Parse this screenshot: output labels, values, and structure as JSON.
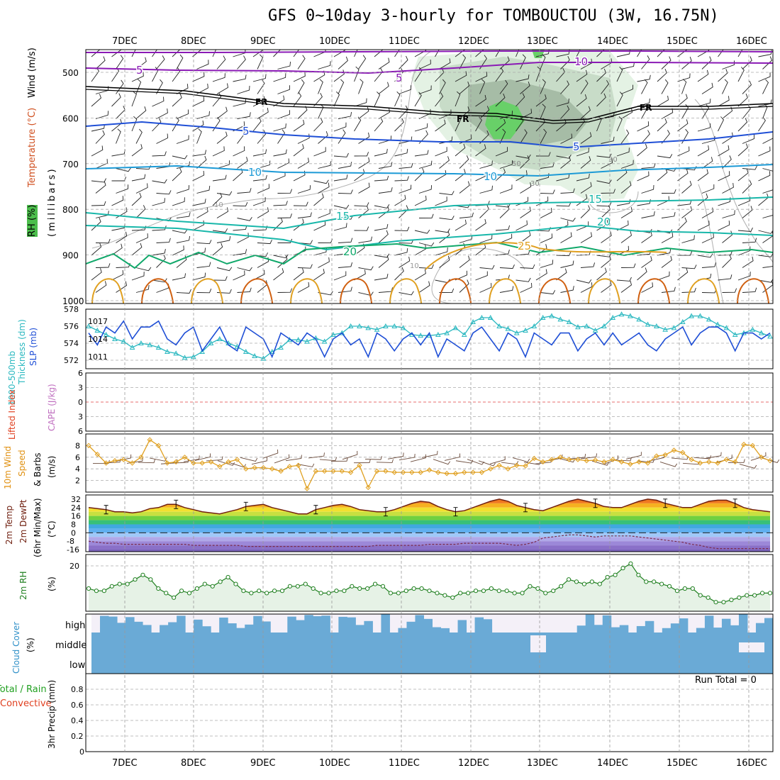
{
  "title": "GFS 0~10day 3-hourly for TOMBOUCTOU (3W, 16.75N)",
  "dates": [
    "7DEC",
    "8DEC",
    "9DEC",
    "10DEC",
    "11DEC",
    "12DEC",
    "13DEC",
    "14DEC",
    "15DEC",
    "16DEC"
  ],
  "colors": {
    "purple": "#8a1ab5",
    "black": "#000000",
    "blue": "#1f4fd6",
    "sky": "#1c9ad6",
    "teal": "#18b7aa",
    "green": "#10a86a",
    "orange": "#e0a020",
    "darkorange": "#d06010",
    "rh_green": "#68d068",
    "gray": "#999999",
    "cloud": "#6aaad6",
    "cloud_low": "#f4f0f8"
  },
  "panels": {
    "upper_air": {
      "ylabel_wind": "Wind (m/s)",
      "ylabel_temp": "Temperature (°C)",
      "ylabel_rh": "RH (%)",
      "ylabel_units": "(millibars)",
      "levels": [
        500,
        600,
        700,
        800,
        900,
        1000
      ],
      "isotherm_labels": [
        "5",
        "5",
        "10",
        "FR",
        "FR",
        "FR",
        "5",
        "5",
        "10",
        "10",
        "15",
        "15",
        "20",
        "20",
        "25"
      ]
    },
    "slp": {
      "ylabel_thick": "Thickness (dm)",
      "ylabel_thick2": "1000-500mb",
      "ylabel_slp": "SLP (mb)",
      "thick_ticks": [
        "578",
        "576",
        "574",
        "572"
      ],
      "slp_ticks": [
        "1017",
        "1014",
        "1011"
      ]
    },
    "cape": {
      "ylabel_li": "Lifted Index",
      "ylabel_cape": "CAPE (J/kg)",
      "ticks": [
        "6",
        "3",
        "0",
        "3",
        "6"
      ]
    },
    "wind10": {
      "ylabel_a": "10m Wind",
      "ylabel_b": "Speed",
      "ylabel_c": "& Barbs",
      "units": "(m/s)",
      "ticks": [
        "8",
        "6",
        "4",
        "2"
      ]
    },
    "temp2m": {
      "ylabel_a": "2m Temp",
      "ylabel_b": "2m DewPt",
      "ylabel_c": "(6hr Min/Max)",
      "units": "(°C)",
      "ticks": [
        "32",
        "24",
        "16",
        "8",
        "0",
        "-8",
        "-16"
      ]
    },
    "rh2m": {
      "ylabel": "2m RH",
      "units": "(%)",
      "ticks": [
        "20"
      ]
    },
    "cloud": {
      "ylabel": "Cloud Cover",
      "units": "(%)",
      "ticks": [
        "high",
        "middle",
        "low"
      ]
    },
    "precip": {
      "ylabel_a": "Total / Rain",
      "ylabel_b": "Convective",
      "ylabel_c": "3hr Precip (mm)",
      "run_total": "Run Total = 0",
      "ticks": [
        "0.8",
        "0.6",
        "0.4",
        "0.2",
        "0"
      ]
    }
  },
  "chart_data": [
    {
      "type": "line",
      "title": "Thickness 1000-500mb (dm) / SLP (mb)",
      "series": [
        {
          "name": "SLP (mb)",
          "color": "#1f4fd6",
          "values": [
            1015,
            1013,
            1016,
            1015,
            1017,
            1014,
            1016,
            1016,
            1017,
            1014,
            1013,
            1015,
            1016,
            1012,
            1014,
            1016,
            1013,
            1012,
            1016,
            1015,
            1014,
            1011,
            1015,
            1014,
            1013,
            1015,
            1014,
            1011,
            1014,
            1015,
            1013,
            1014,
            1011,
            1015,
            1014,
            1012,
            1014,
            1015,
            1013,
            1015,
            1011,
            1014,
            1013,
            1012,
            1015,
            1016,
            1014,
            1012,
            1015,
            1014,
            1011,
            1015,
            1014,
            1013,
            1015,
            1015,
            1012,
            1014,
            1015,
            1013,
            1015,
            1013,
            1014,
            1015,
            1013,
            1012,
            1014,
            1015,
            1016,
            1013,
            1015,
            1016,
            1016,
            1015,
            1012,
            1015,
            1015,
            1014,
            1015
          ]
        },
        {
          "name": "Thickness (dm)",
          "color": "#2ab8c0",
          "values": [
            576,
            575.5,
            575,
            574.5,
            574.2,
            573.5,
            574,
            573.8,
            573.5,
            573,
            572.8,
            572.3,
            572.4,
            573,
            574,
            574.5,
            574,
            573.6,
            573,
            572.5,
            572.2,
            573,
            573.5,
            574.4,
            574.4,
            574.2,
            574.6,
            574.2,
            575,
            575.2,
            576,
            576,
            575.8,
            575.6,
            576,
            576,
            575.8,
            575,
            574.9,
            574.9,
            575,
            575.2,
            575.8,
            575,
            576.5,
            577,
            577,
            576,
            575.7,
            575.2,
            575.5,
            576,
            577,
            577.2,
            576.8,
            576.5,
            575.9,
            576,
            575.5,
            576,
            577,
            577.4,
            577.2,
            576.8,
            576.2,
            576,
            575.6,
            575.8,
            576.5,
            577.2,
            577.2,
            576.8,
            576.2,
            575.8,
            575,
            575.2,
            575.6,
            575.2,
            574.8
          ]
        }
      ],
      "ylim_thickness": [
        571,
        578
      ],
      "ylim_slp": [
        1009,
        1019
      ]
    },
    {
      "type": "line",
      "title": "10m Wind Speed (m/s)",
      "series": [
        {
          "name": "10m Wind Speed",
          "color": "#e0a020",
          "values": [
            8,
            6.5,
            5,
            5.4,
            5.6,
            5,
            6,
            9,
            8,
            5,
            5.2,
            6,
            5,
            5,
            5.2,
            4.4,
            5.2,
            5.6,
            4,
            4.2,
            4.2,
            4,
            3.6,
            4.4,
            4.6,
            0.6,
            3.6,
            3.6,
            3.6,
            3.6,
            3.4,
            4.6,
            0.8,
            3.6,
            3.6,
            3.4,
            3.4,
            3.4,
            3.4,
            3.8,
            3.4,
            3.2,
            3.2,
            3.4,
            3.4,
            3.4,
            4,
            4.6,
            4,
            4.6,
            4.5,
            5.8,
            5.2,
            5.6,
            6,
            5.6,
            5.6,
            5.4,
            5.5,
            5.2,
            5.6,
            5.2,
            4.8,
            5.2,
            5,
            6.2,
            6.4,
            7.2,
            6.8,
            5.6,
            5,
            5.2,
            5,
            5.6,
            5.2,
            8.2,
            8,
            6,
            5.4
          ]
        }
      ],
      "ylim": [
        0,
        10
      ]
    },
    {
      "type": "line",
      "title": "2m Temp / DewPt (°C)",
      "series": [
        {
          "name": "2m Temp",
          "color": "#702010",
          "values": [
            24,
            23,
            22,
            20,
            20,
            19,
            20,
            23,
            24,
            27,
            27,
            24,
            22,
            20,
            19,
            18,
            20,
            22,
            25,
            26,
            27,
            24,
            22,
            20,
            18,
            18,
            22,
            24,
            26,
            27,
            25,
            22,
            21,
            20,
            20,
            22,
            25,
            28,
            30,
            29,
            25,
            22,
            20,
            21,
            24,
            27,
            30,
            32,
            30,
            26,
            24,
            22,
            21,
            24,
            27,
            30,
            32,
            30,
            28,
            25,
            24,
            24,
            27,
            30,
            32,
            31,
            28,
            26,
            24,
            24,
            27,
            30,
            31,
            31,
            28,
            24,
            22,
            21,
            20
          ]
        },
        {
          "name": "2m DewPt",
          "color": "#7a2a4a",
          "values": [
            -8,
            -9,
            -10,
            -10,
            -11,
            -11,
            -11,
            -11,
            -11,
            -11,
            -11,
            -11,
            -12,
            -12,
            -12,
            -12,
            -12,
            -12,
            -13,
            -13,
            -13,
            -13,
            -13,
            -13,
            -13,
            -13,
            -13,
            -13,
            -13,
            -13,
            -13,
            -13,
            -13,
            -12,
            -12,
            -12,
            -12,
            -12,
            -12,
            -11,
            -11,
            -11,
            -11,
            -10,
            -10,
            -10,
            -10,
            -10,
            -11,
            -12,
            -11,
            -9,
            -5,
            -4,
            -3,
            -2,
            -2,
            -3,
            -4,
            -3,
            -3,
            -3,
            -3,
            -4,
            -5,
            -6,
            -7,
            -8,
            -9,
            -11,
            -12,
            -14,
            -15,
            -15,
            -15,
            -15,
            -15,
            -15,
            -15
          ]
        }
      ],
      "ylim": [
        -18,
        36
      ]
    },
    {
      "type": "line",
      "title": "2m RH (%)",
      "series": [
        {
          "name": "2m RH",
          "color": "#208020",
          "values": [
            10,
            9,
            9,
            11,
            12,
            12,
            14,
            16,
            14,
            10,
            8,
            6,
            9,
            8,
            10,
            12,
            11,
            13,
            15,
            12,
            9,
            8,
            9,
            8,
            9,
            9,
            11,
            11,
            12,
            10,
            8,
            8,
            9,
            9,
            11,
            10,
            10,
            12,
            11,
            8,
            8,
            9,
            10,
            10,
            9,
            8,
            7,
            6,
            8,
            8,
            9,
            9,
            10,
            9,
            9,
            8,
            8,
            11,
            10,
            8,
            9,
            11,
            14,
            13,
            12,
            13,
            12,
            15,
            16,
            19,
            21,
            16,
            13,
            13,
            12,
            11,
            9,
            10,
            10,
            7,
            6,
            4,
            4,
            5,
            6,
            7,
            7,
            8,
            8
          ]
        }
      ],
      "ylim": [
        0,
        25
      ]
    },
    {
      "type": "bar",
      "title": "3hr Precip (mm)",
      "categories": [
        "7DEC",
        "8DEC",
        "9DEC",
        "10DEC",
        "11DEC",
        "12DEC",
        "13DEC",
        "14DEC",
        "15DEC",
        "16DEC"
      ],
      "values": [
        0,
        0,
        0,
        0,
        0,
        0,
        0,
        0,
        0,
        0
      ],
      "ylim": [
        0,
        1
      ]
    }
  ]
}
